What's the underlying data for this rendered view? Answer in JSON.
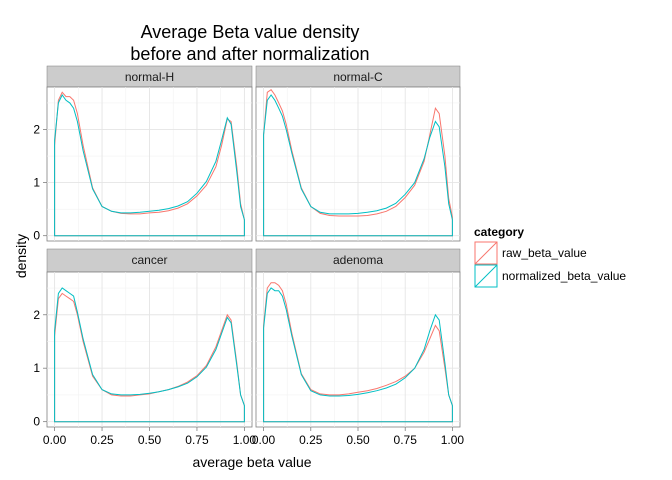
{
  "chart_data": {
    "type": "line",
    "title_lines": [
      "Average Beta value density",
      "before and after normalization"
    ],
    "xlabel": "average beta value",
    "ylabel": "density",
    "xlim": [
      -0.04,
      1.04
    ],
    "ylim": [
      -0.1,
      2.8
    ],
    "x_ticks": [
      0,
      0.25,
      0.5,
      0.75,
      1
    ],
    "x_tick_labels": [
      "0.00",
      "0.25",
      "0.50",
      "0.75",
      "1.00"
    ],
    "y_ticks": [
      0,
      1,
      2
    ],
    "y_tick_labels": [
      "0",
      "1",
      "2"
    ],
    "grid": true,
    "legend": {
      "title": "category",
      "position": "right",
      "entries": [
        {
          "name": "raw_beta_value",
          "color": "#F8766D"
        },
        {
          "name": "normalized_beta_value",
          "color": "#00BFC4"
        }
      ]
    },
    "panels": [
      {
        "label": "normal-H",
        "series": [
          {
            "name": "raw_beta_value",
            "x": [
              0.0,
              0.02,
              0.04,
              0.06,
              0.08,
              0.1,
              0.12,
              0.15,
              0.2,
              0.25,
              0.3,
              0.35,
              0.4,
              0.45,
              0.5,
              0.55,
              0.6,
              0.65,
              0.7,
              0.75,
              0.8,
              0.85,
              0.88,
              0.91,
              0.93,
              0.96,
              0.98,
              1.0
            ],
            "y": [
              1.7,
              2.55,
              2.7,
              2.62,
              2.62,
              2.55,
              2.3,
              1.7,
              0.9,
              0.55,
              0.46,
              0.42,
              0.41,
              0.41,
              0.43,
              0.44,
              0.47,
              0.52,
              0.6,
              0.75,
              0.95,
              1.3,
              1.7,
              2.2,
              2.15,
              1.3,
              0.6,
              0.3
            ]
          },
          {
            "name": "normalized_beta_value",
            "x": [
              0.0,
              0.02,
              0.04,
              0.06,
              0.08,
              0.1,
              0.12,
              0.15,
              0.2,
              0.25,
              0.3,
              0.35,
              0.4,
              0.45,
              0.5,
              0.55,
              0.6,
              0.65,
              0.7,
              0.75,
              0.8,
              0.85,
              0.88,
              0.91,
              0.93,
              0.96,
              0.98,
              1.0
            ],
            "y": [
              1.8,
              2.5,
              2.65,
              2.55,
              2.5,
              2.4,
              2.15,
              1.6,
              0.88,
              0.55,
              0.46,
              0.43,
              0.43,
              0.44,
              0.46,
              0.48,
              0.51,
              0.56,
              0.64,
              0.8,
              1.02,
              1.4,
              1.8,
              2.22,
              2.1,
              1.2,
              0.55,
              0.3
            ]
          }
        ]
      },
      {
        "label": "normal-C",
        "series": [
          {
            "name": "raw_beta_value",
            "x": [
              0.0,
              0.02,
              0.04,
              0.06,
              0.08,
              0.1,
              0.12,
              0.15,
              0.2,
              0.25,
              0.3,
              0.35,
              0.4,
              0.45,
              0.5,
              0.55,
              0.6,
              0.65,
              0.7,
              0.75,
              0.8,
              0.85,
              0.88,
              0.91,
              0.93,
              0.96,
              0.98,
              1.0
            ],
            "y": [
              1.9,
              2.7,
              2.75,
              2.65,
              2.5,
              2.35,
              2.1,
              1.6,
              0.9,
              0.55,
              0.42,
              0.38,
              0.37,
              0.37,
              0.37,
              0.38,
              0.41,
              0.46,
              0.55,
              0.72,
              0.95,
              1.4,
              1.9,
              2.4,
              2.3,
              1.5,
              0.7,
              0.35
            ]
          },
          {
            "name": "normalized_beta_value",
            "x": [
              0.0,
              0.02,
              0.04,
              0.06,
              0.08,
              0.1,
              0.12,
              0.15,
              0.2,
              0.25,
              0.3,
              0.35,
              0.4,
              0.45,
              0.5,
              0.55,
              0.6,
              0.65,
              0.7,
              0.75,
              0.8,
              0.85,
              0.88,
              0.91,
              0.93,
              0.96,
              0.98,
              1.0
            ],
            "y": [
              1.9,
              2.55,
              2.65,
              2.55,
              2.4,
              2.25,
              2.0,
              1.55,
              0.88,
              0.55,
              0.44,
              0.41,
              0.41,
              0.41,
              0.42,
              0.44,
              0.47,
              0.52,
              0.61,
              0.78,
              1.0,
              1.45,
              1.85,
              2.15,
              2.05,
              1.3,
              0.6,
              0.3
            ]
          }
        ]
      },
      {
        "label": "cancer",
        "series": [
          {
            "name": "raw_beta_value",
            "x": [
              0.0,
              0.02,
              0.04,
              0.06,
              0.08,
              0.1,
              0.12,
              0.15,
              0.2,
              0.25,
              0.3,
              0.35,
              0.4,
              0.45,
              0.5,
              0.55,
              0.6,
              0.65,
              0.7,
              0.75,
              0.8,
              0.85,
              0.88,
              0.91,
              0.93,
              0.96,
              0.98,
              1.0
            ],
            "y": [
              1.6,
              2.3,
              2.4,
              2.35,
              2.3,
              2.25,
              2.0,
              1.5,
              0.85,
              0.6,
              0.5,
              0.48,
              0.48,
              0.5,
              0.52,
              0.56,
              0.6,
              0.66,
              0.74,
              0.86,
              1.05,
              1.4,
              1.7,
              2.0,
              1.9,
              1.1,
              0.5,
              0.3
            ]
          },
          {
            "name": "normalized_beta_value",
            "x": [
              0.0,
              0.02,
              0.04,
              0.06,
              0.08,
              0.1,
              0.12,
              0.15,
              0.2,
              0.25,
              0.3,
              0.35,
              0.4,
              0.45,
              0.5,
              0.55,
              0.6,
              0.65,
              0.7,
              0.75,
              0.8,
              0.85,
              0.88,
              0.91,
              0.93,
              0.96,
              0.98,
              1.0
            ],
            "y": [
              1.7,
              2.4,
              2.5,
              2.45,
              2.4,
              2.35,
              2.05,
              1.55,
              0.88,
              0.6,
              0.52,
              0.5,
              0.5,
              0.51,
              0.53,
              0.56,
              0.6,
              0.65,
              0.72,
              0.84,
              1.02,
              1.35,
              1.65,
              1.95,
              1.85,
              1.05,
              0.5,
              0.3
            ]
          }
        ]
      },
      {
        "label": "adenoma",
        "series": [
          {
            "name": "raw_beta_value",
            "x": [
              0.0,
              0.02,
              0.04,
              0.06,
              0.08,
              0.1,
              0.12,
              0.15,
              0.2,
              0.25,
              0.3,
              0.35,
              0.4,
              0.45,
              0.5,
              0.55,
              0.6,
              0.65,
              0.7,
              0.75,
              0.8,
              0.85,
              0.88,
              0.91,
              0.93,
              0.96,
              0.98,
              1.0
            ],
            "y": [
              1.8,
              2.5,
              2.6,
              2.6,
              2.55,
              2.45,
              2.2,
              1.65,
              0.9,
              0.6,
              0.52,
              0.5,
              0.5,
              0.52,
              0.55,
              0.58,
              0.62,
              0.68,
              0.75,
              0.85,
              1.0,
              1.3,
              1.55,
              1.8,
              1.7,
              1.0,
              0.5,
              0.3
            ]
          },
          {
            "name": "normalized_beta_value",
            "x": [
              0.0,
              0.02,
              0.04,
              0.06,
              0.08,
              0.1,
              0.12,
              0.15,
              0.2,
              0.25,
              0.3,
              0.35,
              0.4,
              0.45,
              0.5,
              0.55,
              0.6,
              0.65,
              0.7,
              0.75,
              0.8,
              0.85,
              0.88,
              0.91,
              0.93,
              0.96,
              0.98,
              1.0
            ],
            "y": [
              1.75,
              2.4,
              2.5,
              2.45,
              2.45,
              2.35,
              2.1,
              1.6,
              0.88,
              0.58,
              0.5,
              0.48,
              0.48,
              0.49,
              0.51,
              0.54,
              0.58,
              0.63,
              0.7,
              0.82,
              1.0,
              1.35,
              1.7,
              2.0,
              1.9,
              1.1,
              0.5,
              0.3
            ]
          }
        ]
      }
    ]
  }
}
